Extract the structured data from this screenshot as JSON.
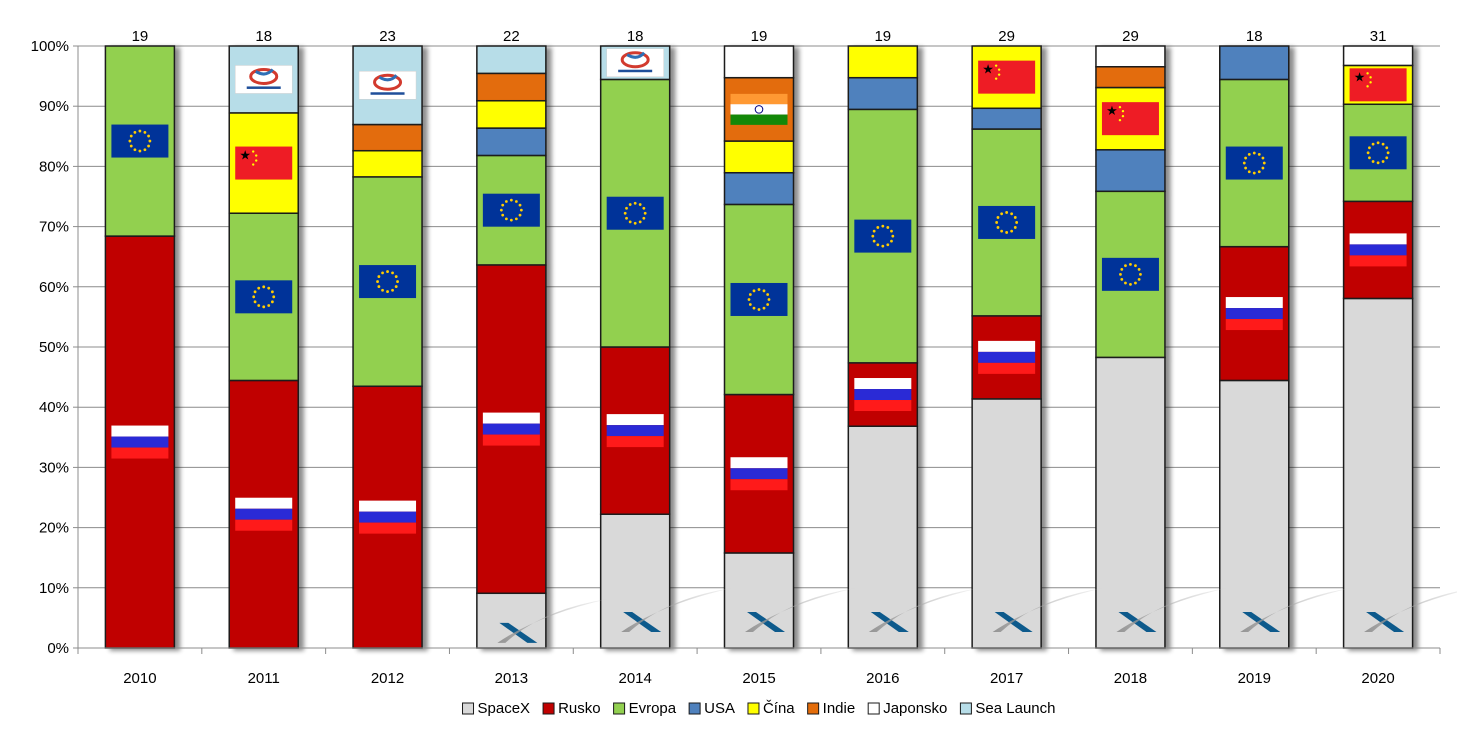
{
  "chart_data": {
    "type": "bar",
    "stacked": true,
    "normalized": true,
    "categories": [
      "2010",
      "2011",
      "2012",
      "2013",
      "2014",
      "2015",
      "2016",
      "2017",
      "2018",
      "2019",
      "2020"
    ],
    "totals": [
      19,
      18,
      23,
      22,
      18,
      19,
      19,
      29,
      29,
      18,
      31
    ],
    "y_ticks": [
      "0%",
      "10%",
      "20%",
      "30%",
      "40%",
      "50%",
      "60%",
      "70%",
      "80%",
      "90%",
      "100%"
    ],
    "ylim": [
      0,
      100
    ],
    "grid": true,
    "legend_position": "bottom",
    "series": [
      {
        "name": "SpaceX",
        "color": "#d9d9d9",
        "values": [
          0,
          0,
          0,
          2,
          4,
          3,
          7,
          12,
          14,
          8,
          18
        ]
      },
      {
        "name": "Rusko",
        "color": "#c00000",
        "values": [
          13,
          8,
          10,
          12,
          5,
          5,
          2,
          4,
          0,
          4,
          5
        ]
      },
      {
        "name": "Evropa",
        "color": "#92d050",
        "values": [
          6,
          5,
          8,
          4,
          8,
          6,
          8,
          9,
          8,
          5,
          5
        ]
      },
      {
        "name": "USA",
        "color": "#4f81bd",
        "values": [
          0,
          0,
          0,
          1,
          0,
          1,
          1,
          1,
          2,
          1,
          0
        ]
      },
      {
        "name": "Čína",
        "color": "#ffff00",
        "values": [
          0,
          3,
          1,
          1,
          0,
          1,
          1,
          3,
          3,
          0,
          2
        ]
      },
      {
        "name": "Indie",
        "color": "#e36c09",
        "values": [
          0,
          0,
          1,
          1,
          0,
          2,
          0,
          0,
          1,
          0,
          0
        ]
      },
      {
        "name": "Japonsko",
        "color": "#ffffff",
        "values": [
          0,
          0,
          0,
          0,
          0,
          1,
          0,
          0,
          1,
          0,
          1
        ]
      },
      {
        "name": "Sea Launch",
        "color": "#b7dde8",
        "values": [
          0,
          2,
          3,
          1,
          1,
          0,
          0,
          0,
          0,
          0,
          0
        ]
      }
    ],
    "flags": [
      {
        "year": "2010",
        "series": "Rusko",
        "icon": "flag-russia-icon"
      },
      {
        "year": "2010",
        "series": "Evropa",
        "icon": "flag-eu-icon"
      },
      {
        "year": "2011",
        "series": "Rusko",
        "icon": "flag-russia-icon"
      },
      {
        "year": "2011",
        "series": "Evropa",
        "icon": "flag-eu-icon"
      },
      {
        "year": "2011",
        "series": "Čína",
        "icon": "flag-china-icon"
      },
      {
        "year": "2011",
        "series": "Sea Launch",
        "icon": "sea-launch-logo-icon"
      },
      {
        "year": "2012",
        "series": "Rusko",
        "icon": "flag-russia-icon"
      },
      {
        "year": "2012",
        "series": "Evropa",
        "icon": "flag-eu-icon"
      },
      {
        "year": "2012",
        "series": "Sea Launch",
        "icon": "sea-launch-logo-icon"
      },
      {
        "year": "2013",
        "series": "Rusko",
        "icon": "flag-russia-icon"
      },
      {
        "year": "2013",
        "series": "Evropa",
        "icon": "flag-eu-icon"
      },
      {
        "year": "2014",
        "series": "Rusko",
        "icon": "flag-russia-icon"
      },
      {
        "year": "2014",
        "series": "Evropa",
        "icon": "flag-eu-icon"
      },
      {
        "year": "2014",
        "series": "Sea Launch",
        "icon": "sea-launch-logo-icon"
      },
      {
        "year": "2015",
        "series": "Rusko",
        "icon": "flag-russia-icon"
      },
      {
        "year": "2015",
        "series": "Evropa",
        "icon": "flag-eu-icon"
      },
      {
        "year": "2015",
        "series": "Indie",
        "icon": "flag-india-icon"
      },
      {
        "year": "2016",
        "series": "Rusko",
        "icon": "flag-russia-icon"
      },
      {
        "year": "2016",
        "series": "Evropa",
        "icon": "flag-eu-icon"
      },
      {
        "year": "2017",
        "series": "Rusko",
        "icon": "flag-russia-icon"
      },
      {
        "year": "2017",
        "series": "Evropa",
        "icon": "flag-eu-icon"
      },
      {
        "year": "2017",
        "series": "Čína",
        "icon": "flag-china-icon"
      },
      {
        "year": "2018",
        "series": "Evropa",
        "icon": "flag-eu-icon"
      },
      {
        "year": "2018",
        "series": "Čína",
        "icon": "flag-china-icon"
      },
      {
        "year": "2019",
        "series": "Rusko",
        "icon": "flag-russia-icon"
      },
      {
        "year": "2019",
        "series": "Evropa",
        "icon": "flag-eu-icon"
      },
      {
        "year": "2020",
        "series": "Rusko",
        "icon": "flag-russia-icon"
      },
      {
        "year": "2020",
        "series": "Evropa",
        "icon": "flag-eu-icon"
      },
      {
        "year": "2020",
        "series": "Čína",
        "icon": "flag-china-icon"
      }
    ],
    "spacex_logo_years": [
      "2013",
      "2014",
      "2015",
      "2016",
      "2017",
      "2018",
      "2019",
      "2020"
    ],
    "spacex_logo_icon": "spacex-logo-icon"
  }
}
